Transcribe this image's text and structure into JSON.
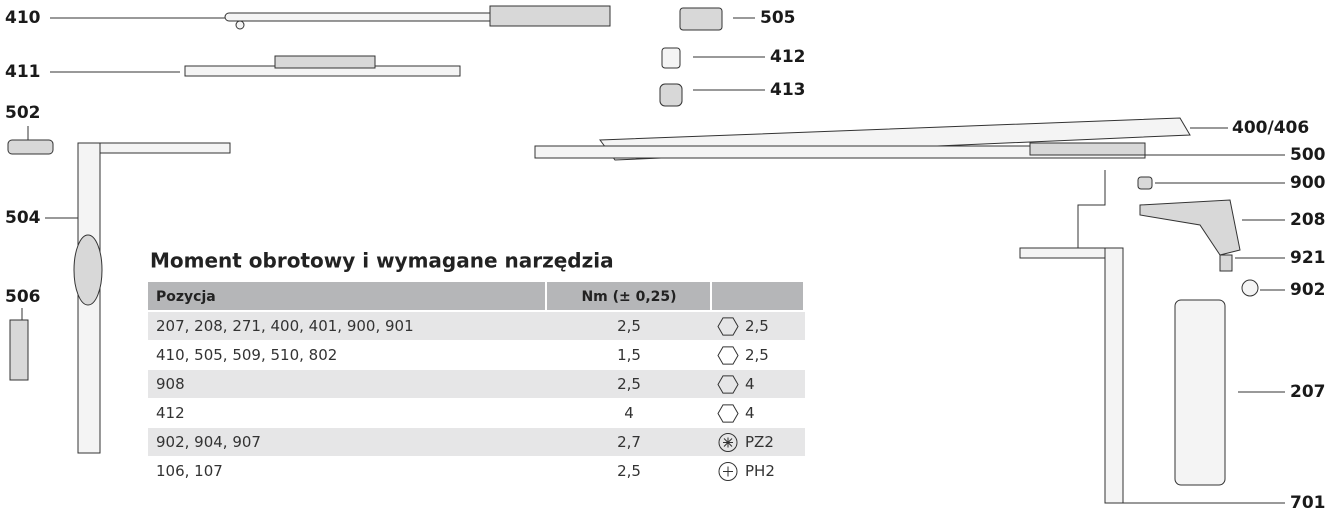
{
  "labels": [
    "410",
    "411",
    "502",
    "504",
    "506",
    "505",
    "412",
    "413",
    "400/406",
    "500",
    "900",
    "208",
    "921",
    "902",
    "207",
    "701"
  ],
  "table": {
    "title": "Moment obrotowy i wymagane narzędzia",
    "header": [
      "Pozycja",
      "Nm (± 0,25)"
    ],
    "rows": [
      [
        "207, 208, 271, 400, 401, 900, 901",
        "2,5",
        "2,5"
      ],
      [
        "410, 505, 509, 510, 802",
        "1,5",
        "2,5"
      ],
      [
        "908",
        "2,5",
        "4"
      ],
      [
        "412",
        "4",
        "4"
      ],
      [
        "902, 904, 907",
        "2,7",
        "PZ2"
      ],
      [
        "106, 107",
        "2,5",
        "PH2"
      ]
    ]
  }
}
